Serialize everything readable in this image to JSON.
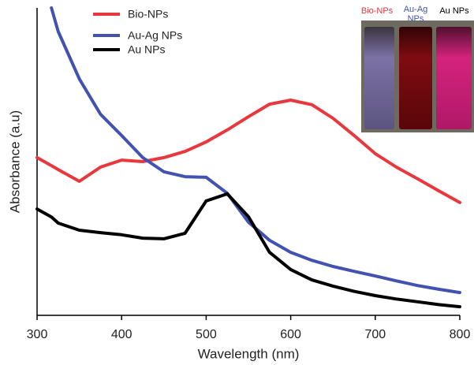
{
  "chart_data": {
    "type": "line",
    "x_label": "Wavelength (nm)",
    "y_label": "Absorbance (a.u)",
    "x": [
      300,
      317,
      325,
      350,
      375,
      400,
      425,
      450,
      475,
      500,
      525,
      550,
      575,
      600,
      625,
      650,
      675,
      700,
      725,
      750,
      775,
      800
    ],
    "series": [
      {
        "name": "Bio-NPs",
        "color": "#e8383d",
        "values": [
          0.513,
          0.487,
          0.474,
          0.436,
          0.482,
          0.505,
          0.5,
          0.513,
          0.533,
          0.564,
          0.603,
          0.646,
          0.687,
          0.7,
          0.685,
          0.641,
          0.585,
          0.526,
          0.482,
          0.444,
          0.405,
          0.367
        ]
      },
      {
        "name": "Au-Ag NPs",
        "color": "#4152b0",
        "values": [
          null,
          1.0,
          0.923,
          0.769,
          0.654,
          0.585,
          0.513,
          0.467,
          0.451,
          0.449,
          0.397,
          0.303,
          0.244,
          0.205,
          0.179,
          0.159,
          0.143,
          0.128,
          0.112,
          0.097,
          0.085,
          0.074
        ]
      },
      {
        "name": "Au NPs",
        "color": "#000000",
        "values": [
          0.346,
          0.32,
          0.3,
          0.277,
          0.269,
          0.262,
          0.251,
          0.249,
          0.267,
          0.372,
          0.395,
          0.321,
          0.205,
          0.149,
          0.115,
          0.095,
          0.078,
          0.064,
          0.053,
          0.044,
          0.035,
          0.028
        ]
      }
    ],
    "xlim": [
      300,
      800
    ],
    "xticks": [
      300,
      400,
      500,
      600,
      700,
      800
    ],
    "ylim": [
      0,
      1
    ],
    "legend": "upper-left",
    "inset_labels": [
      "Bio-NPs",
      "Au-Ag NPs",
      "Au NPs"
    ]
  }
}
